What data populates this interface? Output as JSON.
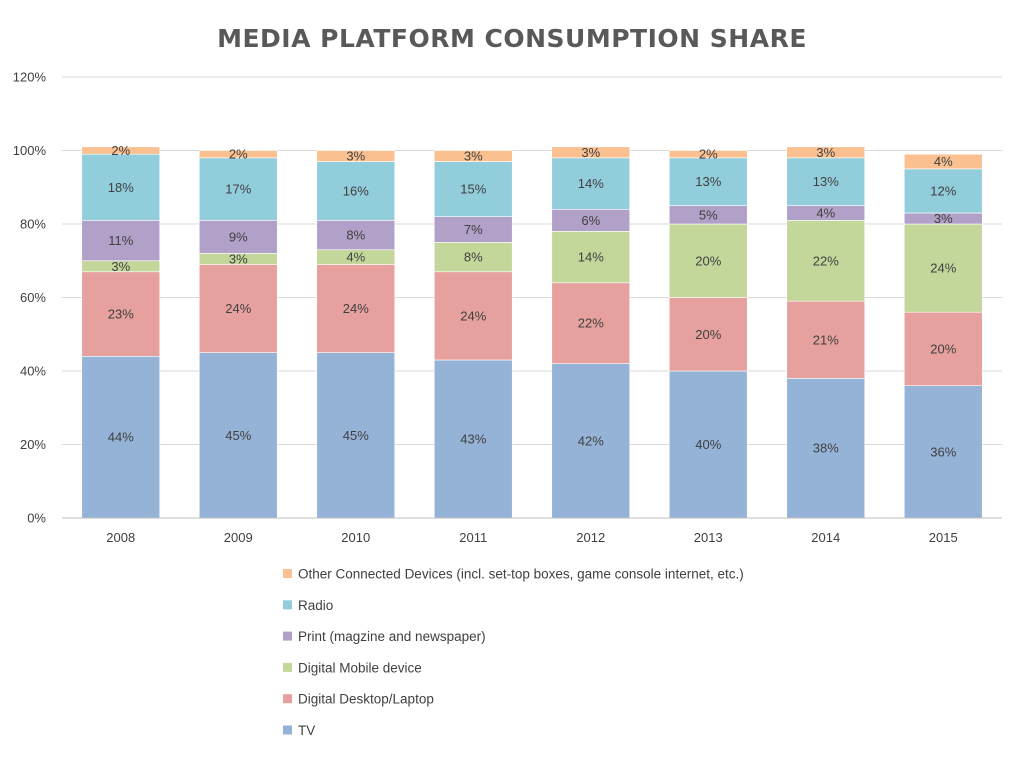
{
  "chart_data": {
    "type": "bar",
    "stacked": true,
    "title": "MEDIA PLATFORM CONSUMPTION SHARE",
    "xlabel": "",
    "ylabel": "",
    "ylim": [
      0,
      120
    ],
    "y_ticks": [
      "0%",
      "20%",
      "40%",
      "60%",
      "80%",
      "100%",
      "120%"
    ],
    "grid": true,
    "legend_position": "bottom",
    "categories": [
      "2008",
      "2009",
      "2010",
      "2011",
      "2012",
      "2013",
      "2014",
      "2015"
    ],
    "series": [
      {
        "name": "TV",
        "color": "#95B3D7",
        "values": [
          44,
          45,
          45,
          43,
          42,
          40,
          38,
          36
        ],
        "labels": [
          "44%",
          "45%",
          "45%",
          "43%",
          "42%",
          "40%",
          "38%",
          "36%"
        ]
      },
      {
        "name": "Digital Desktop/Laptop",
        "color": "#E6A19E",
        "values": [
          23,
          24,
          24,
          24,
          22,
          20,
          21,
          20
        ],
        "labels": [
          "23%",
          "24%",
          "24%",
          "24%",
          "22%",
          "20%",
          "21%",
          "20%"
        ]
      },
      {
        "name": "Digital Mobile device",
        "color": "#C4D79B",
        "values": [
          3,
          3,
          4,
          8,
          14,
          20,
          22,
          24
        ],
        "labels": [
          "3%",
          "3%",
          "4%",
          "8%",
          "14%",
          "20%",
          "22%",
          "24%"
        ]
      },
      {
        "name": "Print (magzine and newspaper)",
        "color": "#B1A0C7",
        "values": [
          11,
          9,
          8,
          7,
          6,
          5,
          4,
          3
        ],
        "labels": [
          "11%",
          "9%",
          "8%",
          "7%",
          "6%",
          "5%",
          "4%",
          "3%"
        ]
      },
      {
        "name": "Radio",
        "color": "#92CDDC",
        "values": [
          18,
          17,
          16,
          15,
          14,
          13,
          13,
          12
        ],
        "labels": [
          "18%",
          "17%",
          "16%",
          "15%",
          "14%",
          "13%",
          "13%",
          "12%"
        ]
      },
      {
        "name": "Other Connected Devices (incl. set-top boxes, game console internet, etc.)",
        "color": "#FAC090",
        "values": [
          2,
          2,
          3,
          3,
          3,
          2,
          3,
          4
        ],
        "labels": [
          "2%",
          "2%",
          "3%",
          "3%",
          "3%",
          "2%",
          "3%",
          "4%"
        ]
      }
    ],
    "legend_order": [
      "Other Connected Devices (incl. set-top boxes, game console internet, etc.)",
      "Radio",
      "Print (magzine and newspaper)",
      "Digital Mobile device",
      "Digital Desktop/Laptop",
      "TV"
    ]
  }
}
